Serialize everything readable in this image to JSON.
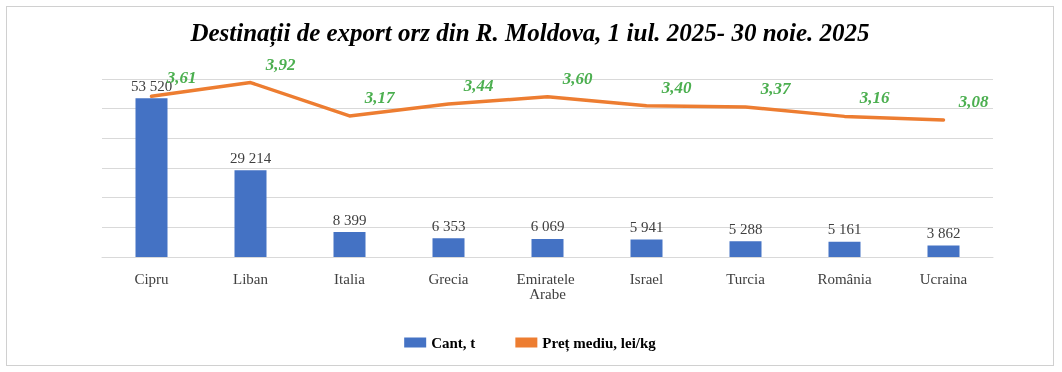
{
  "chart_data": {
    "type": "bar",
    "title": "Destinații de export orz din R. Moldova, 1 iul. 2025- 30 noie. 2025",
    "categories": [
      "Cipru",
      "Liban",
      "Italia",
      "Grecia",
      "Emiratele Arabe",
      "Israel",
      "Turcia",
      "România",
      "Ucraina"
    ],
    "series": [
      {
        "name": "Cant, t",
        "color": "#4472c4",
        "values": [
          53520,
          29214,
          8399,
          6353,
          6069,
          5941,
          5288,
          5161,
          3862
        ],
        "value_labels": [
          "53 520",
          "29 214",
          "8 399",
          "6 353",
          "6 069",
          "5 941",
          "5 288",
          "5 161",
          "3 862"
        ]
      },
      {
        "name": "Preț mediu, lei/kg",
        "type": "line",
        "axis": "y2",
        "color": "#ed7d31",
        "values": [
          3.61,
          3.92,
          3.17,
          3.44,
          3.6,
          3.4,
          3.37,
          3.16,
          3.08
        ],
        "value_labels": [
          "3,61",
          "3,92",
          "3,17",
          "3,44",
          "3,60",
          "3,40",
          "3,37",
          "3,16",
          "3,08"
        ]
      }
    ],
    "ylim": [
      0,
      60000
    ],
    "yticks": [
      {
        "value": 0,
        "label": null
      },
      {
        "value": 10000,
        "label": null
      },
      {
        "value": 20000,
        "label": null
      },
      {
        "value": 30000,
        "label": null
      },
      {
        "value": 40000,
        "label": null
      },
      {
        "value": 50000,
        "label": null
      },
      {
        "value": 60000,
        "label": null
      }
    ],
    "grid": "y",
    "legend": "bottom",
    "tick_labels": "x",
    "marker": "none",
    "line_style": "solid"
  }
}
